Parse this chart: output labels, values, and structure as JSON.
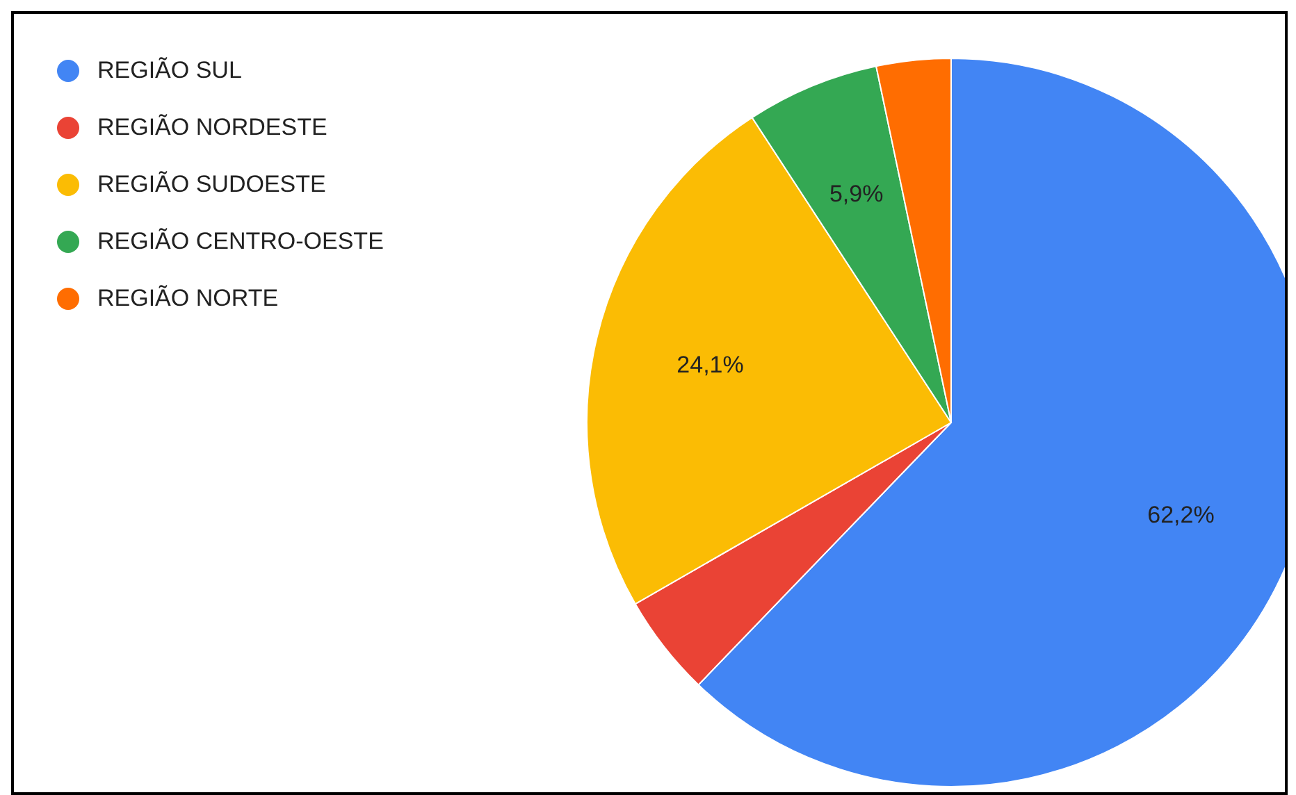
{
  "chart_data": {
    "type": "pie",
    "categories": [
      "REGIÃO SUL",
      "REGIÃO NORDESTE",
      "REGIÃO SUDOESTE",
      "REGIÃO CENTRO-OESTE",
      "REGIÃO NORTE"
    ],
    "values": [
      62.2,
      4.5,
      24.1,
      5.9,
      3.3
    ],
    "colors": [
      "#4285f4",
      "#ea4335",
      "#fbbc04",
      "#34a853",
      "#ff6d01"
    ],
    "value_labels": [
      "62,2%",
      null,
      "24,1%",
      "5,9%",
      null
    ],
    "legend": "top left"
  }
}
